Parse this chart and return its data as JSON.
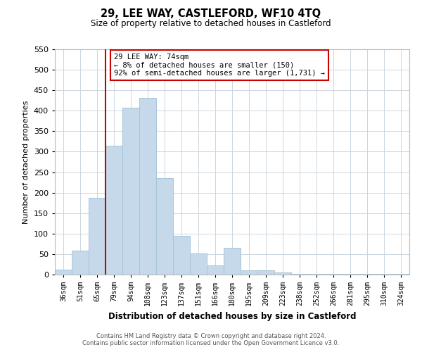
{
  "title": "29, LEE WAY, CASTLEFORD, WF10 4TQ",
  "subtitle": "Size of property relative to detached houses in Castleford",
  "xlabel": "Distribution of detached houses by size in Castleford",
  "ylabel": "Number of detached properties",
  "categories": [
    "36sqm",
    "51sqm",
    "65sqm",
    "79sqm",
    "94sqm",
    "108sqm",
    "123sqm",
    "137sqm",
    "151sqm",
    "166sqm",
    "180sqm",
    "195sqm",
    "209sqm",
    "223sqm",
    "238sqm",
    "252sqm",
    "266sqm",
    "281sqm",
    "295sqm",
    "310sqm",
    "324sqm"
  ],
  "values": [
    12,
    58,
    188,
    315,
    408,
    432,
    235,
    95,
    52,
    22,
    65,
    10,
    10,
    5,
    1,
    1,
    1,
    1,
    1,
    1,
    2
  ],
  "bar_color": "#c5d9ea",
  "bar_edge_color": "#a8c4d8",
  "vline_color": "#cc0000",
  "annotation_line1": "29 LEE WAY: 74sqm",
  "annotation_line2": "← 8% of detached houses are smaller (150)",
  "annotation_line3": "92% of semi-detached houses are larger (1,731) →",
  "annotation_box_color": "#ffffff",
  "annotation_box_edge": "#cc0000",
  "ylim": [
    0,
    550
  ],
  "yticks": [
    0,
    50,
    100,
    150,
    200,
    250,
    300,
    350,
    400,
    450,
    500,
    550
  ],
  "footer_line1": "Contains HM Land Registry data © Crown copyright and database right 2024.",
  "footer_line2": "Contains public sector information licensed under the Open Government Licence v3.0.",
  "background_color": "#ffffff",
  "grid_color": "#ccd6e0"
}
